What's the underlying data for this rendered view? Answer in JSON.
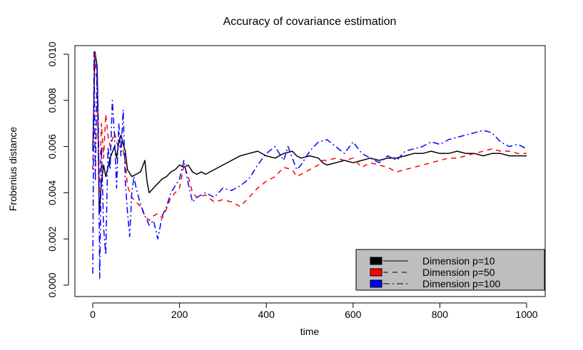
{
  "chart_data": {
    "type": "line",
    "title": "Accuracy of covariance estimation",
    "xlabel": "time",
    "ylabel": "Frobenius distance",
    "xlim": [
      0,
      1000
    ],
    "ylim": [
      0.0,
      0.0101
    ],
    "x_ticks": [
      "0",
      "200",
      "400",
      "600",
      "800",
      "1000"
    ],
    "y_ticks": [
      "0.000",
      "0.002",
      "0.004",
      "0.006",
      "0.008",
      "0.010"
    ],
    "grid": false,
    "legend_position": "bottom-right",
    "series": [
      {
        "name": "Dimension p=10",
        "color": "#000000",
        "line_style": "solid",
        "x": [
          0,
          5,
          10,
          15,
          20,
          25,
          30,
          40,
          50,
          55,
          60,
          65,
          70,
          75,
          80,
          90,
          100,
          110,
          120,
          125,
          130,
          140,
          150,
          160,
          170,
          180,
          190,
          200,
          210,
          220,
          230,
          240,
          250,
          260,
          280,
          300,
          320,
          340,
          360,
          380,
          400,
          420,
          440,
          460,
          470,
          480,
          500,
          520,
          530,
          540,
          560,
          580,
          600,
          620,
          640,
          660,
          680,
          700,
          720,
          740,
          760,
          780,
          800,
          820,
          840,
          860,
          880,
          900,
          920,
          940,
          960,
          980,
          1000
        ],
        "values": [
          0.0058,
          0.0101,
          0.0095,
          0.0031,
          0.0045,
          0.0052,
          0.0047,
          0.0055,
          0.006,
          0.0055,
          0.0062,
          0.0065,
          0.0061,
          0.0058,
          0.005,
          0.0047,
          0.0048,
          0.0049,
          0.0054,
          0.0045,
          0.004,
          0.0042,
          0.0044,
          0.0046,
          0.0047,
          0.0049,
          0.005,
          0.0052,
          0.0051,
          0.0052,
          0.0049,
          0.0048,
          0.0049,
          0.0048,
          0.005,
          0.0052,
          0.0054,
          0.0056,
          0.0057,
          0.0058,
          0.0056,
          0.0055,
          0.0057,
          0.0058,
          0.0056,
          0.0055,
          0.0056,
          0.0055,
          0.0053,
          0.0052,
          0.0053,
          0.0054,
          0.0053,
          0.0054,
          0.0055,
          0.0054,
          0.0055,
          0.0055,
          0.0056,
          0.0057,
          0.0057,
          0.0058,
          0.0057,
          0.0057,
          0.0058,
          0.0057,
          0.0057,
          0.0056,
          0.0057,
          0.0057,
          0.0056,
          0.0056,
          0.0056
        ]
      },
      {
        "name": "Dimension p=50",
        "color": "#ff0000",
        "line_style": "dashed",
        "x": [
          0,
          5,
          10,
          15,
          20,
          25,
          30,
          35,
          40,
          50,
          55,
          60,
          65,
          70,
          75,
          80,
          90,
          100,
          110,
          120,
          130,
          140,
          150,
          160,
          170,
          180,
          190,
          200,
          210,
          220,
          230,
          240,
          260,
          280,
          300,
          320,
          340,
          360,
          380,
          400,
          420,
          440,
          460,
          470,
          480,
          500,
          520,
          530,
          540,
          560,
          580,
          600,
          620,
          640,
          660,
          680,
          700,
          720,
          740,
          760,
          780,
          800,
          820,
          840,
          860,
          880,
          900,
          920,
          940,
          960,
          980,
          1000
        ],
        "values": [
          0.005,
          0.0101,
          0.0085,
          0.004,
          0.007,
          0.0055,
          0.0074,
          0.0065,
          0.006,
          0.0066,
          0.0062,
          0.0059,
          0.0061,
          0.0058,
          0.0053,
          0.0043,
          0.0038,
          0.0036,
          0.0034,
          0.003,
          0.0028,
          0.003,
          0.0031,
          0.0029,
          0.0033,
          0.0038,
          0.004,
          0.0042,
          0.0052,
          0.0047,
          0.004,
          0.0038,
          0.0039,
          0.0036,
          0.0037,
          0.0036,
          0.0034,
          0.0038,
          0.0042,
          0.0045,
          0.0047,
          0.0051,
          0.005,
          0.0047,
          0.0048,
          0.005,
          0.0052,
          0.0054,
          0.0054,
          0.0055,
          0.0054,
          0.0055,
          0.0051,
          0.0053,
          0.0052,
          0.0051,
          0.0049,
          0.005,
          0.0051,
          0.0052,
          0.0053,
          0.0054,
          0.0055,
          0.0055,
          0.0056,
          0.0057,
          0.0058,
          0.0059,
          0.0058,
          0.0058,
          0.0057,
          0.0057
        ]
      },
      {
        "name": "Dimension p=100",
        "color": "#0000ff",
        "line_style": "dotdash",
        "x": [
          0,
          3,
          6,
          10,
          13,
          16,
          20,
          25,
          30,
          35,
          40,
          45,
          50,
          55,
          60,
          65,
          70,
          75,
          80,
          85,
          90,
          95,
          100,
          110,
          120,
          130,
          140,
          150,
          160,
          170,
          180,
          190,
          200,
          210,
          220,
          230,
          240,
          260,
          280,
          300,
          320,
          340,
          360,
          380,
          400,
          420,
          440,
          450,
          460,
          470,
          480,
          500,
          520,
          540,
          560,
          580,
          600,
          620,
          640,
          660,
          680,
          700,
          720,
          740,
          760,
          780,
          800,
          820,
          840,
          860,
          880,
          900,
          920,
          940,
          960,
          980,
          1000
        ],
        "values": [
          0.0005,
          0.0101,
          0.0045,
          0.0095,
          0.007,
          0.0003,
          0.006,
          0.0025,
          0.0013,
          0.006,
          0.005,
          0.008,
          0.0065,
          0.0042,
          0.007,
          0.0056,
          0.0076,
          0.0045,
          0.0032,
          0.0021,
          0.004,
          0.0047,
          0.0042,
          0.0035,
          0.003,
          0.0026,
          0.0028,
          0.002,
          0.003,
          0.0034,
          0.004,
          0.0043,
          0.0046,
          0.0054,
          0.0044,
          0.0036,
          0.0038,
          0.004,
          0.0038,
          0.0042,
          0.0041,
          0.0043,
          0.0046,
          0.0052,
          0.0057,
          0.006,
          0.0054,
          0.006,
          0.0055,
          0.005,
          0.0052,
          0.0058,
          0.0062,
          0.0063,
          0.006,
          0.0057,
          0.0062,
          0.0057,
          0.0055,
          0.0053,
          0.0056,
          0.0054,
          0.0058,
          0.0059,
          0.006,
          0.0062,
          0.0061,
          0.0063,
          0.0064,
          0.0065,
          0.0066,
          0.0067,
          0.0066,
          0.0062,
          0.006,
          0.0061,
          0.0059
        ]
      }
    ]
  },
  "legend": {
    "background": "#bebebe",
    "items": [
      {
        "label": "Dimension p=10",
        "color": "#000000",
        "dash": ""
      },
      {
        "label": "Dimension p=50",
        "color": "#ff0000",
        "dash": "7,6"
      },
      {
        "label": "Dimension p=100",
        "color": "#0000ff",
        "dash": "9,4,2,4"
      }
    ]
  }
}
